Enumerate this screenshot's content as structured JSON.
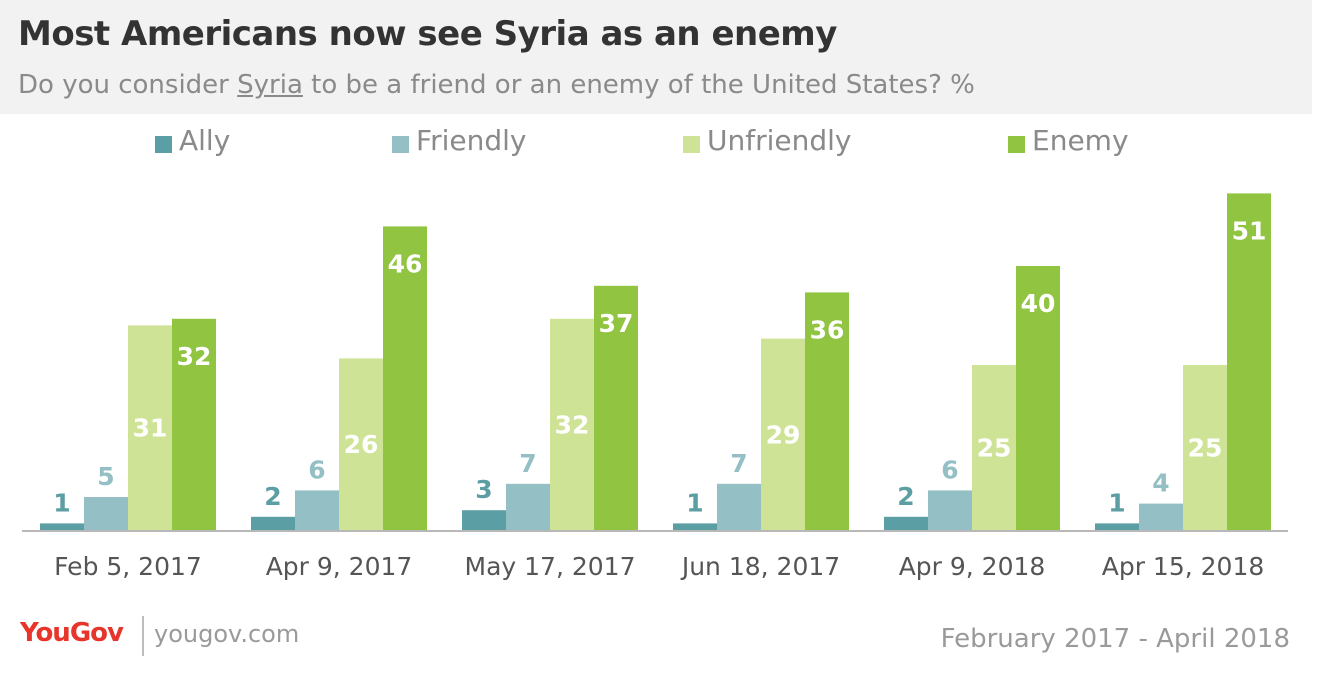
{
  "header": {
    "title": "Most Americans now see Syria as an enemy",
    "subtitle_before": "Do you consider ",
    "subtitle_underlined": "Syria",
    "subtitle_after": " to be a friend or an enemy of the United States? %"
  },
  "footer": {
    "logo": "YouGov",
    "url": "yougov.com",
    "date_range": "February 2017 - April 2018"
  },
  "colors": {
    "Ally": "#5b9ea3",
    "Friendly": "#94c0c5",
    "Unfriendly": "#cfe397",
    "Enemy": "#91c441"
  },
  "chart_data": {
    "type": "bar",
    "title": "Most Americans now see Syria as an enemy",
    "subtitle": "Do you consider Syria to be a friend or an enemy of the United States? %",
    "categories": [
      "Feb 5, 2017",
      "Apr 9, 2017",
      "May 17, 2017",
      "Jun 18, 2017",
      "Apr 9, 2018",
      "Apr 15, 2018"
    ],
    "series": [
      {
        "name": "Ally",
        "values": [
          1,
          2,
          3,
          1,
          2,
          1
        ]
      },
      {
        "name": "Friendly",
        "values": [
          5,
          6,
          7,
          7,
          6,
          4
        ]
      },
      {
        "name": "Unfriendly",
        "values": [
          31,
          26,
          32,
          29,
          25,
          25
        ]
      },
      {
        "name": "Enemy",
        "values": [
          32,
          46,
          37,
          36,
          40,
          51
        ]
      }
    ],
    "ylim": [
      0,
      51
    ],
    "legend": "top",
    "grid": false
  }
}
